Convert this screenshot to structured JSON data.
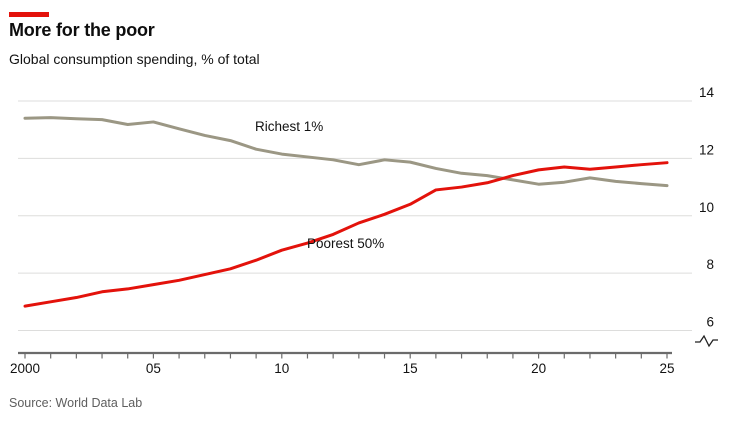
{
  "header": {
    "title": "More for the poor",
    "subtitle": "Global consumption spending, % of total",
    "brand_bar_color": "#E3120B"
  },
  "chart_data": {
    "type": "line",
    "x": [
      2000,
      2001,
      2002,
      2003,
      2004,
      2005,
      2006,
      2007,
      2008,
      2009,
      2010,
      2011,
      2012,
      2013,
      2014,
      2015,
      2016,
      2017,
      2018,
      2019,
      2020,
      2021,
      2022,
      2023,
      2024,
      2025
    ],
    "series": [
      {
        "name": "Richest 1%",
        "color": "#9B9784",
        "values": [
          13.4,
          13.42,
          13.38,
          13.35,
          13.18,
          13.27,
          13.03,
          12.8,
          12.62,
          12.32,
          12.15,
          12.05,
          11.95,
          11.78,
          11.95,
          11.87,
          11.65,
          11.48,
          11.4,
          11.25,
          11.1,
          11.17,
          11.32,
          11.2,
          11.12,
          11.05
        ]
      },
      {
        "name": "Poorest 50%",
        "color": "#E3120B",
        "values": [
          6.85,
          7.0,
          7.15,
          7.35,
          7.45,
          7.6,
          7.75,
          7.95,
          8.15,
          8.45,
          8.8,
          9.05,
          9.35,
          9.75,
          10.05,
          10.4,
          10.9,
          11.0,
          11.15,
          11.4,
          11.6,
          11.7,
          11.62,
          11.7,
          11.78,
          11.85
        ]
      }
    ],
    "ylim": [
      6,
      14
    ],
    "yticks": [
      14,
      12,
      10,
      8,
      6
    ],
    "xticks": [
      {
        "year": 2000,
        "label": "2000"
      },
      {
        "year": 2005,
        "label": "05"
      },
      {
        "year": 2010,
        "label": "10"
      },
      {
        "year": 2015,
        "label": "15"
      },
      {
        "year": 2020,
        "label": "20"
      },
      {
        "year": 2025,
        "label": "25"
      }
    ],
    "grid": "horizontal",
    "axis_break": true,
    "legend_position": "inline-labels"
  },
  "source": {
    "label": "Source: World Data Lab"
  }
}
